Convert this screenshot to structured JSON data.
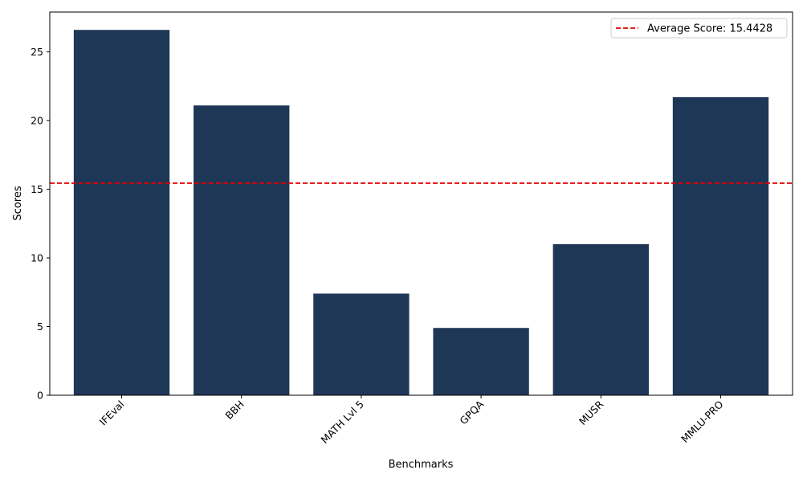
{
  "chart_data": {
    "type": "bar",
    "categories": [
      "IFEval",
      "BBH",
      "MATH Lvl 5",
      "GPQA",
      "MUSR",
      "MMLU-PRO"
    ],
    "values": [
      26.6,
      21.1,
      7.4,
      4.9,
      11.0,
      21.7
    ],
    "title": "",
    "xlabel": "Benchmarks",
    "ylabel": "Scores",
    "ylim": [
      0,
      27.9
    ],
    "yticks": [
      0,
      5,
      10,
      15,
      20,
      25
    ],
    "grid": false,
    "bar_color": "#1f3757",
    "reference_line": {
      "value": 15.4428,
      "label": "Average Score: 15.4428",
      "color": "#e00000",
      "style": "dashed"
    },
    "legend": {
      "position": "top-right",
      "entries": [
        "Average Score: 15.4428"
      ]
    }
  }
}
